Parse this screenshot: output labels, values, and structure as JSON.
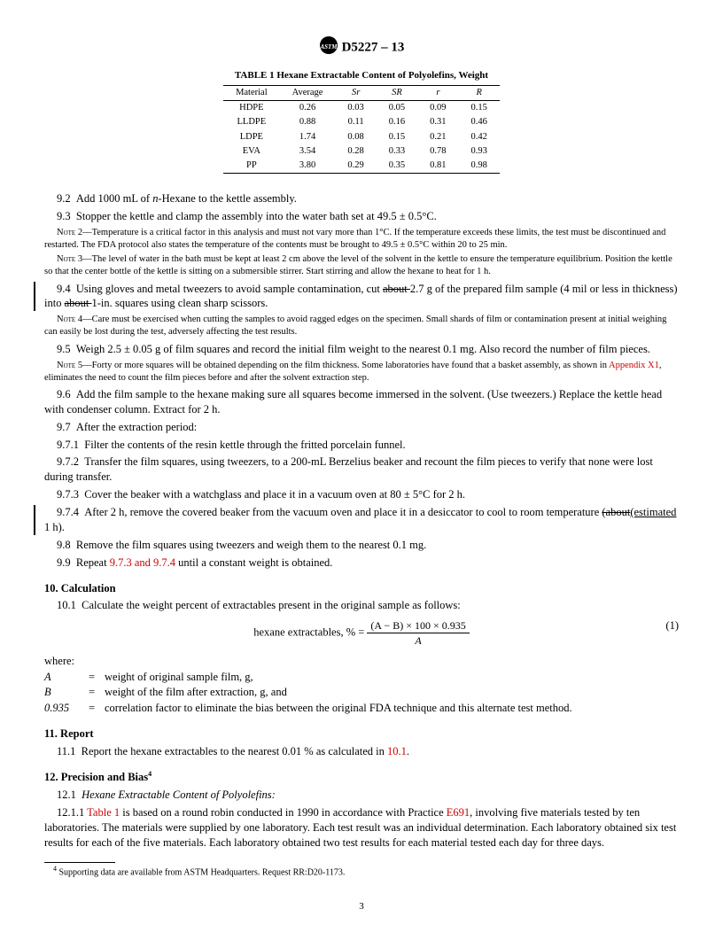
{
  "header": {
    "designation": "D5227 – 13"
  },
  "table": {
    "caption": "TABLE 1 Hexane Extractable Content of Polyolefins, Weight",
    "columns": [
      "Material",
      "Average",
      "Sr",
      "SR",
      "r",
      "R"
    ],
    "col_styles": [
      "normal",
      "normal",
      "italic",
      "italic",
      "italic",
      "italic"
    ],
    "rows": [
      [
        "HDPE",
        "0.26",
        "0.03",
        "0.05",
        "0.09",
        "0.15"
      ],
      [
        "LLDPE",
        "0.88",
        "0.11",
        "0.16",
        "0.31",
        "0.46"
      ],
      [
        "LDPE",
        "1.74",
        "0.08",
        "0.15",
        "0.21",
        "0.42"
      ],
      [
        "EVA",
        "3.54",
        "0.28",
        "0.33",
        "0.78",
        "0.93"
      ],
      [
        "PP",
        "3.80",
        "0.29",
        "0.35",
        "0.81",
        "0.98"
      ]
    ]
  },
  "p_9_2": {
    "num": "9.2",
    "text": "Add 1000 mL of ",
    "italic": "n",
    "text2": "-Hexane to the kettle assembly."
  },
  "p_9_3": {
    "num": "9.3",
    "text": "Stopper the kettle and clamp the assembly into the water bath set at 49.5 ± 0.5°C."
  },
  "note2": {
    "label": "Note 2",
    "text": "—Temperature is a critical factor in this analysis and must not vary more than 1°C. If the temperature exceeds these limits, the test must be discontinued and restarted. The FDA protocol also states the temperature of the contents must be brought to 49.5 ± 0.5°C within 20 to 25 min."
  },
  "note3": {
    "label": "Note 3",
    "text": "—The level of water in the bath must be kept at least 2 cm above the level of the solvent in the kettle to ensure the temperature equilibrium. Position the kettle so that the center bottle of the kettle is sitting on a submersible stirrer. Start stirring and allow the hexane to heat for 1 h."
  },
  "p_9_4": {
    "num": "9.4",
    "a": "Using gloves and metal tweezers to avoid sample contamination, cut ",
    "s1": "about ",
    "b": "2.7 g of the prepared film sample (4 mil or less in thickness) into ",
    "s2": "about ",
    "c": "1-in. squares using clean sharp scissors."
  },
  "note4": {
    "label": "Note 4",
    "text": "—Care must be exercised when cutting the samples to avoid ragged edges on the specimen. Small shards of film or contamination present at initial weighing can easily be lost during the test, adversely affecting the test results."
  },
  "p_9_5": {
    "num": "9.5",
    "text": "Weigh 2.5 ± 0.05 g of film squares and record the initial film weight to the nearest 0.1 mg. Also record the number of film pieces."
  },
  "note5": {
    "label": "Note 5",
    "a": "—Forty or more squares will be obtained depending on the film thickness. Some laboratories have found that a basket assembly, as shown in ",
    "link": "Appendix X1",
    "b": ", eliminates the need to count the film pieces before and after the solvent extraction step."
  },
  "p_9_6": {
    "num": "9.6",
    "text": "Add the film sample to the hexane making sure all squares become immersed in the solvent. (Use tweezers.) Replace the kettle head with condenser column. Extract for 2 h."
  },
  "p_9_7": {
    "num": "9.7",
    "text": "After the extraction period:"
  },
  "p_9_7_1": {
    "num": "9.7.1",
    "text": "Filter the contents of the resin kettle through the fritted porcelain funnel."
  },
  "p_9_7_2": {
    "num": "9.7.2",
    "text": "Transfer the film squares, using tweezers, to a 200-mL Berzelius beaker and recount the film pieces to verify that none were lost during transfer."
  },
  "p_9_7_3": {
    "num": "9.7.3",
    "text": "Cover the beaker with a watchglass and place it in a vacuum oven at 80 ± 5°C for 2 h."
  },
  "p_9_7_4": {
    "num": "9.7.4",
    "a": "After 2 h, remove the covered beaker from the vacuum oven and place it in a desiccator to cool to room temperature ",
    "s1": "(about",
    "u1": "(estimated",
    "b": " 1 h)."
  },
  "p_9_8": {
    "num": "9.8",
    "text": "Remove the film squares using tweezers and weigh them to the nearest 0.1 mg."
  },
  "p_9_9": {
    "num": "9.9",
    "a": "Repeat ",
    "link": "9.7.3 and 9.7.4",
    "b": " until a constant weight is obtained."
  },
  "sec10": {
    "head": "10. Calculation"
  },
  "p_10_1": {
    "num": "10.1",
    "text": "Calculate the weight percent of extractables present in the original sample as follows:"
  },
  "formula": {
    "lhs": "hexane extractables, % = ",
    "num": "(A − B) × 100 × 0.935",
    "den": "A",
    "eqnum": "(1)"
  },
  "where_label": "where:",
  "where": [
    {
      "sym": "A",
      "def": "weight of original sample film, g,"
    },
    {
      "sym": "B",
      "def": "weight of the film after extraction, g, and"
    },
    {
      "sym": "0.935",
      "def": "correlation factor to eliminate the bias between the original FDA technique and this alternate test method."
    }
  ],
  "sec11": {
    "head": "11. Report"
  },
  "p_11_1": {
    "num": "11.1",
    "a": "Report the hexane extractables to the nearest 0.01 % as calculated in ",
    "link": "10.1",
    "b": "."
  },
  "sec12": {
    "head": "12. Precision and Bias",
    "sup": "4"
  },
  "p_12_1": {
    "num": "12.1",
    "italic": "Hexane Extractable Content of Polyolefins:"
  },
  "p_12_1_1": {
    "num": "12.1.1",
    "a": " ",
    "link1": "Table 1",
    "b": " is based on a round robin conducted in 1990 in accordance with Practice ",
    "link2": "E691",
    "c": ", involving five materials tested by ten laboratories. The materials were supplied by one laboratory. Each test result was an individual determination. Each laboratory obtained six test results for each of the five materials. Each laboratory obtained two test results for each material tested each day for three days."
  },
  "footnote": {
    "sup": "4",
    "text": " Supporting data are available from ASTM Headquarters. Request RR:D20-1173."
  },
  "pagenum": "3"
}
